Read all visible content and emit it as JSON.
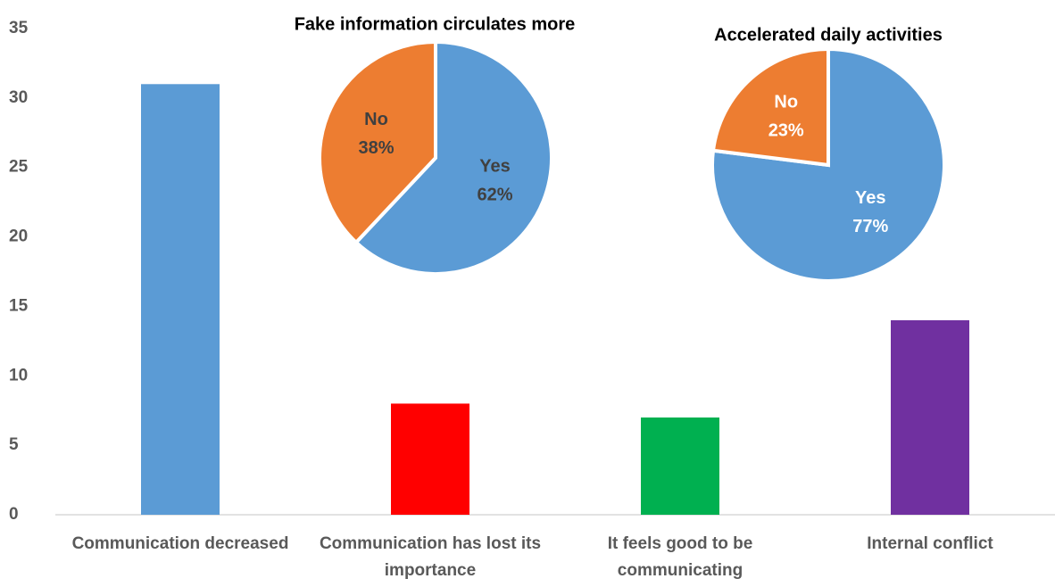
{
  "chart_data": [
    {
      "type": "bar",
      "categories": [
        "Communication decreased",
        "Communication has lost its importance",
        "It feels good to be communicating",
        "Internal conflict"
      ],
      "values": [
        31,
        8,
        7,
        14
      ],
      "colors": [
        "#5b9bd5",
        "#ff0000",
        "#00b050",
        "#7030a0"
      ],
      "ylim": [
        0,
        35
      ],
      "yticks": [
        0,
        5,
        10,
        15,
        20,
        25,
        30,
        35
      ],
      "grid": false
    },
    {
      "type": "pie",
      "title": "Fake information circulates more",
      "categories": [
        "Yes",
        "No"
      ],
      "values": [
        62,
        38
      ],
      "value_labels": [
        "62%",
        "38%"
      ],
      "colors": [
        "#5b9bd5",
        "#ed7d31"
      ],
      "label_color": "#404040"
    },
    {
      "type": "pie",
      "title": "Accelerated daily activities",
      "categories": [
        "Yes",
        "No"
      ],
      "values": [
        77,
        23
      ],
      "value_labels": [
        "77%",
        "23%"
      ],
      "colors": [
        "#5b9bd5",
        "#ed7d31"
      ],
      "label_color": "#ffffff"
    }
  ]
}
